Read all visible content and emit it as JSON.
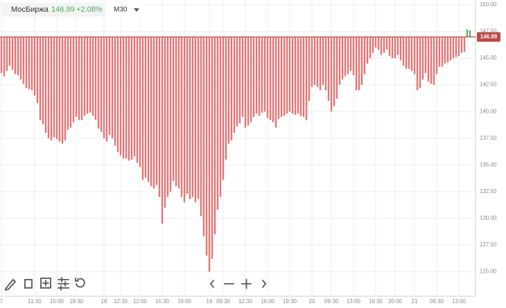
{
  "header": {
    "exchange": "МосБиржа",
    "price": "146.99",
    "change": "+2.08%",
    "interval": "M30"
  },
  "chart_data": {
    "type": "bar",
    "base": 146.99,
    "base_label": "146.99",
    "color": "#e57373",
    "up_color": "#6aa86e",
    "base_color": "#b94a48",
    "ylim": [
      122.7,
      150.45
    ],
    "yticks": [
      {
        "value": 125,
        "label": "125.00"
      },
      {
        "value": 127.5,
        "label": "127.50"
      },
      {
        "value": 130,
        "label": "130.00"
      },
      {
        "value": 132.5,
        "label": "132.50"
      },
      {
        "value": 135,
        "label": "135.00"
      },
      {
        "value": 137.5,
        "label": "137.50"
      },
      {
        "value": 140,
        "label": "140.00"
      },
      {
        "value": 142.5,
        "label": "142.50"
      },
      {
        "value": 145,
        "label": "145.00"
      },
      {
        "value": 147.5,
        "label": "147.50"
      },
      {
        "value": 150,
        "label": "150.00"
      }
    ],
    "grid": true,
    "values": [
      143.6,
      143.3,
      143.8,
      144.3,
      143.9,
      143.5,
      143.4,
      143.0,
      142.6,
      142.2,
      142.1,
      142.0,
      141.5,
      140.8,
      139.2,
      138.8,
      138.0,
      137.5,
      137.3,
      137.6,
      137.4,
      137.2,
      137.0,
      137.3,
      138.3,
      138.5,
      139.0,
      139.5,
      139.2,
      139.2,
      139.6,
      139.8,
      139.9,
      139.6,
      139.2,
      138.4,
      138.1,
      137.5,
      137.2,
      137.8,
      137.5,
      136.8,
      136.2,
      135.9,
      135.6,
      135.6,
      135.4,
      135.5,
      135.8,
      135.2,
      134.8,
      133.6,
      133.8,
      133.4,
      133.0,
      132.8,
      133.1,
      132.0,
      129.5,
      131.0,
      132.0,
      132.5,
      133.5,
      133.0,
      132.8,
      132.0,
      131.5,
      132.3,
      131.8,
      132.0,
      131.5,
      131.8,
      130.2,
      128.3,
      126.5,
      125.0,
      126.2,
      128.5,
      130.8,
      132.0,
      133.6,
      135.5,
      137.0,
      137.3,
      138.0,
      138.6,
      138.9,
      139.5,
      138.5,
      138.7,
      139.0,
      139.5,
      139.8,
      139.6,
      139.9,
      140.0,
      139.4,
      139.2,
      139.0,
      138.5,
      139.3,
      139.5,
      139.6,
      139.8,
      140.0,
      139.8,
      139.7,
      139.8,
      139.6,
      139.5,
      139.2,
      141.0,
      142.3,
      142.5,
      142.3,
      142.0,
      142.5,
      142.0,
      141.0,
      140.0,
      140.5,
      141.2,
      142.5,
      143.0,
      143.3,
      143.5,
      143.8,
      143.4,
      142.0,
      142.0,
      142.5,
      143.5,
      144.5,
      145.0,
      145.5,
      146.0,
      145.8,
      145.3,
      145.5,
      145.8,
      145.2,
      145.0,
      145.0,
      145.3,
      144.8,
      144.3,
      144.0,
      144.0,
      143.8,
      143.5,
      142.0,
      142.2,
      143.0,
      143.6,
      142.8,
      142.6,
      142.5,
      143.5,
      144.2,
      144.2,
      144.5,
      144.6,
      144.8,
      145.0,
      145.1,
      145.2,
      145.5,
      145.6,
      147.7,
      147.6
    ],
    "categories": [
      "7",
      null,
      null,
      null,
      null,
      null,
      null,
      null,
      null,
      null,
      null,
      null,
      "11:30",
      null,
      null,
      null,
      null,
      null,
      null,
      null,
      "15:00",
      null,
      null,
      null,
      null,
      null,
      null,
      "18:30",
      null,
      null,
      null,
      null,
      null,
      null,
      null,
      null,
      null,
      "18",
      null,
      null,
      null,
      null,
      null,
      "12:30",
      null,
      null,
      null,
      null,
      null,
      null,
      "12:00",
      null,
      null,
      null,
      null,
      null,
      null,
      null,
      "15:30",
      null,
      null,
      null,
      null,
      null,
      null,
      null,
      "19:00",
      null,
      null,
      null,
      null,
      null,
      null,
      null,
      null,
      "19",
      null,
      null,
      null,
      null,
      "09:30",
      null,
      null,
      null,
      null,
      null,
      null,
      null,
      "12:30",
      null,
      null,
      null,
      null,
      null,
      null,
      null,
      "16:00",
      null,
      null,
      null,
      null,
      null,
      null,
      null,
      "19:30",
      null,
      null,
      null,
      null,
      null,
      null,
      null,
      "20",
      null,
      null,
      null,
      null,
      null,
      null,
      "09:30",
      null,
      null,
      null,
      null,
      null,
      null,
      null,
      "13:00",
      null,
      null,
      null,
      null,
      null,
      null,
      null,
      "16:30",
      null,
      null,
      null,
      null,
      null,
      null,
      "20:00",
      null,
      null,
      null,
      null,
      null,
      null,
      "21",
      null,
      null,
      null,
      null,
      null,
      null,
      null,
      "09:30",
      null,
      null,
      null,
      null,
      null,
      null,
      null,
      "13:00",
      null,
      null,
      null,
      null
    ]
  }
}
